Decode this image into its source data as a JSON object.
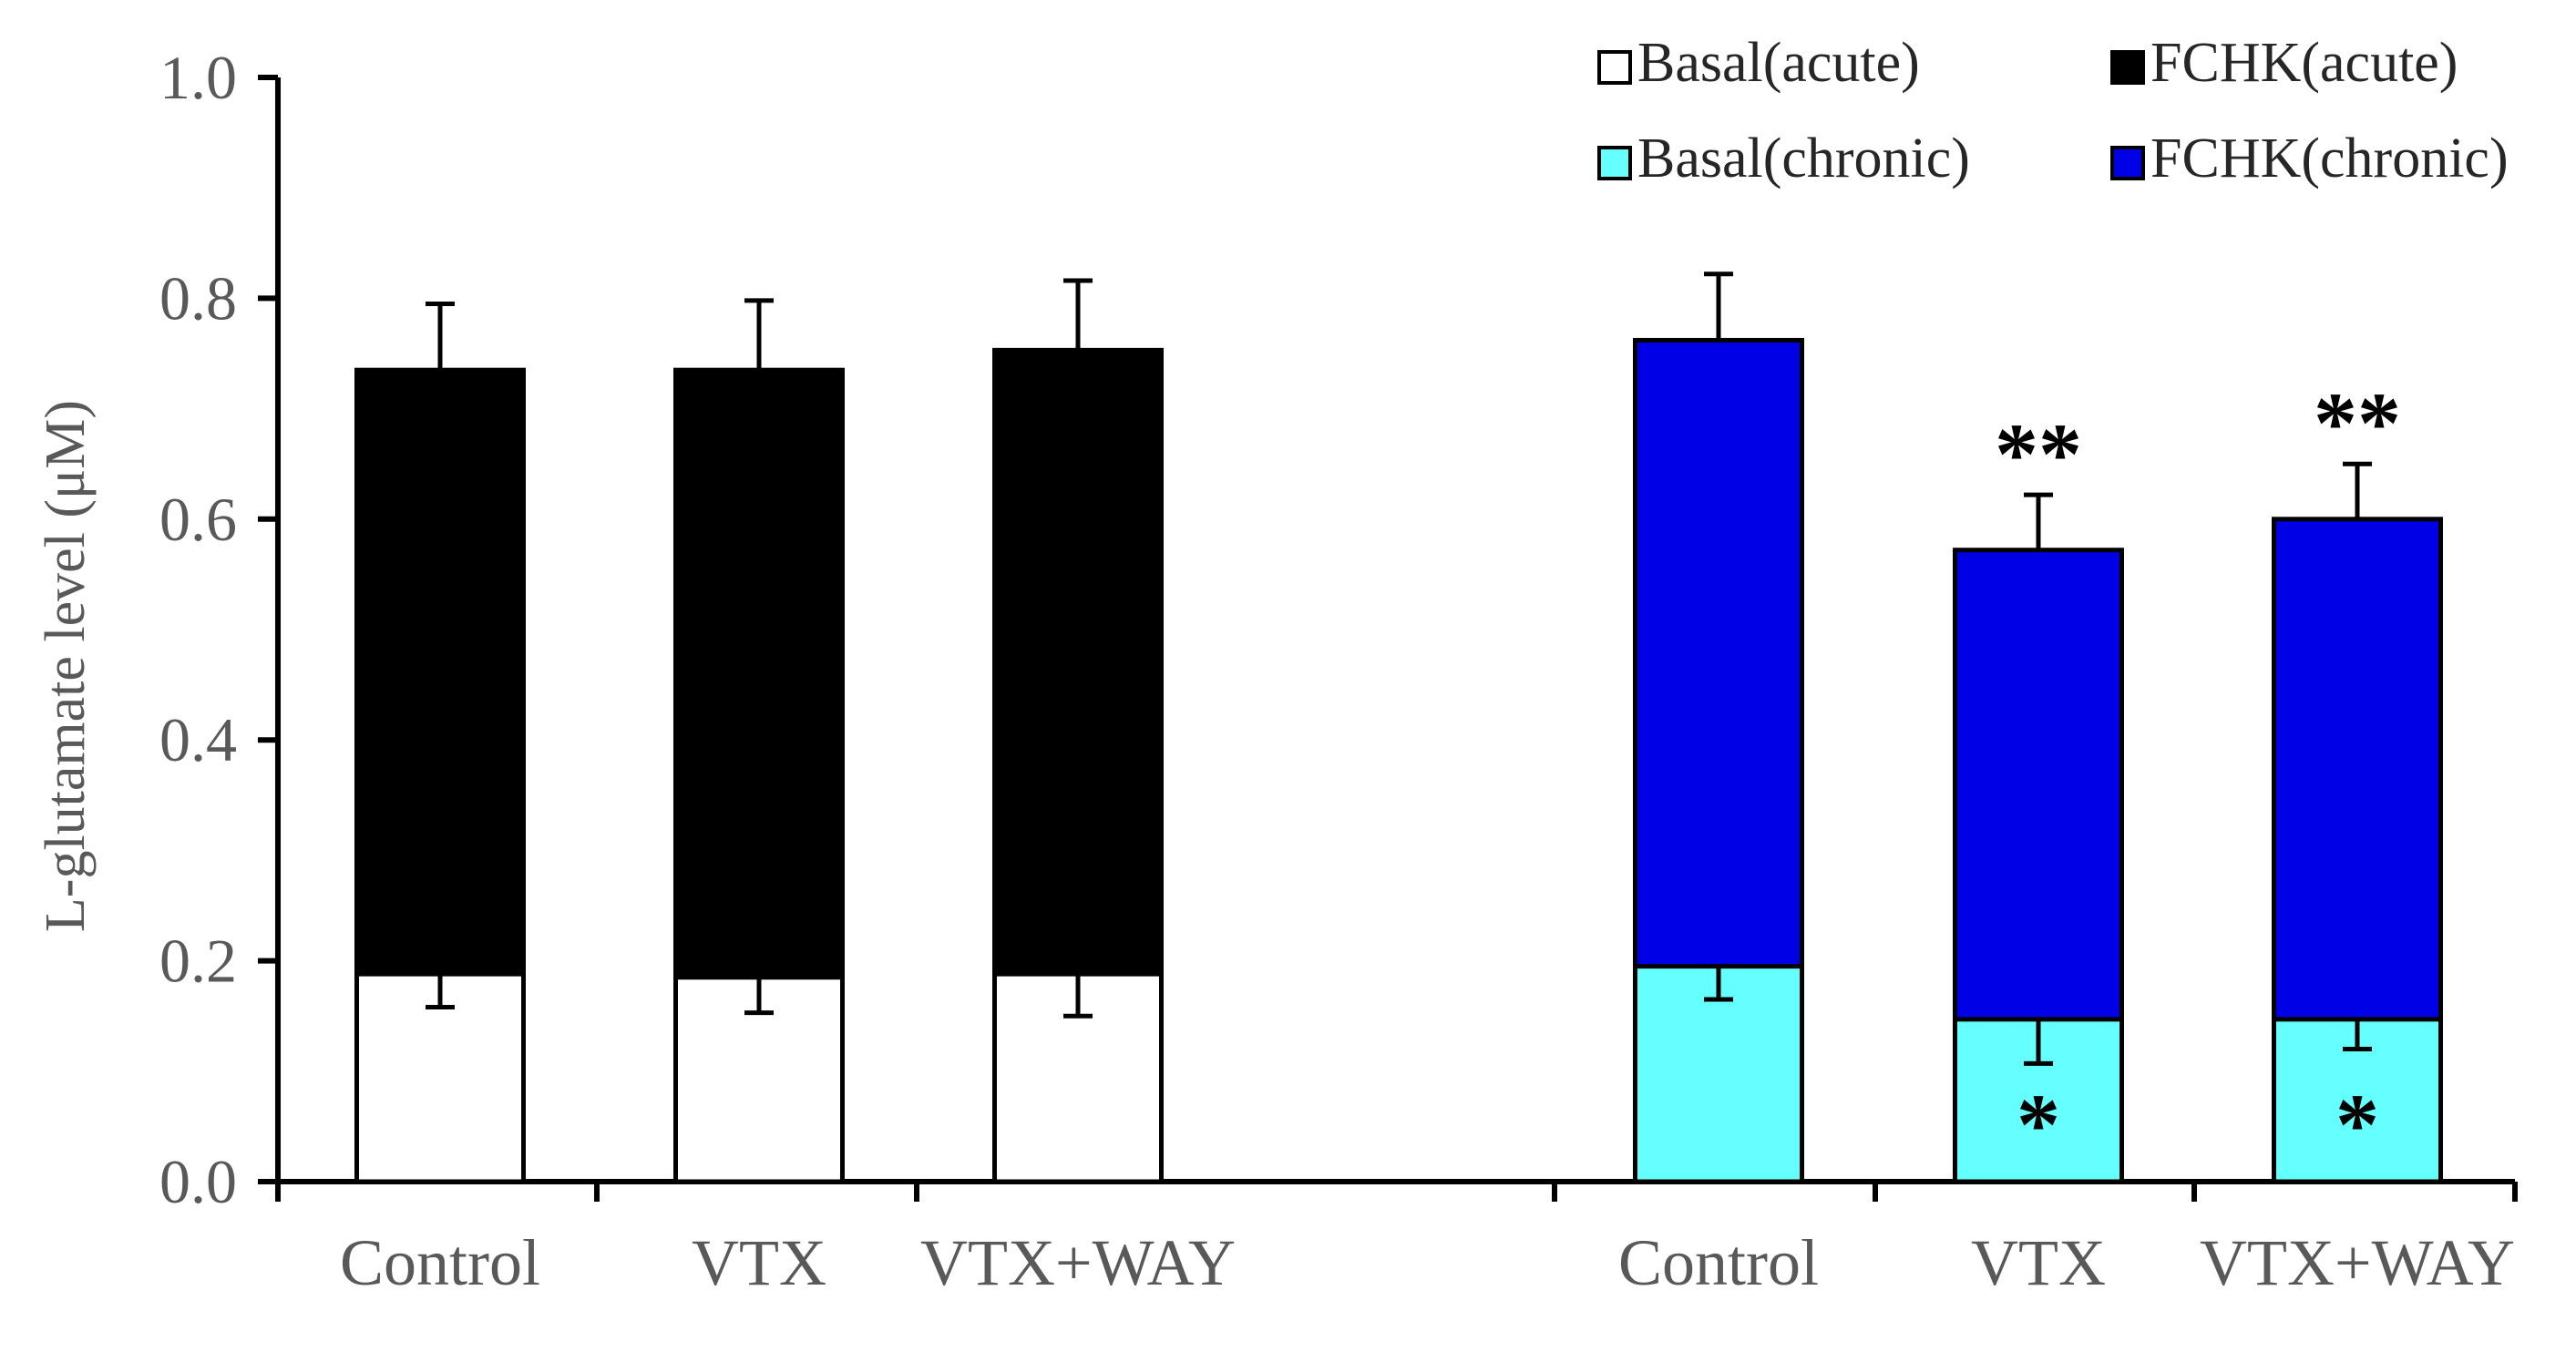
{
  "chart_data": {
    "type": "bar",
    "stacked": "overlay",
    "title": "",
    "xlabel": "",
    "ylabel": "L-glutamate level (μM)",
    "ylim": [
      0,
      1.0
    ],
    "yticks": [
      "0.0",
      "0.2",
      "0.4",
      "0.6",
      "0.8",
      "1.0"
    ],
    "ytick_values": [
      0,
      0.2,
      0.4,
      0.6,
      0.8,
      1.0
    ],
    "groups": [
      {
        "name": "acute",
        "categories": [
          "Control",
          "VTX",
          "VTX+WAY"
        ],
        "series": [
          {
            "name": "Basal(acute)",
            "color": "#ffffff",
            "values": [
              0.188,
              0.185,
              0.188
            ],
            "errors": [
              0.03,
              0.032,
              0.038
            ]
          },
          {
            "name": "FCHK(acute)",
            "color": "#000000",
            "values": [
              0.735,
              0.735,
              0.753
            ],
            "errors": [
              0.06,
              0.063,
              0.063
            ]
          }
        ],
        "basal_marks": [
          "",
          "",
          ""
        ],
        "fchk_marks": [
          "",
          "",
          ""
        ]
      },
      {
        "name": "chronic",
        "categories": [
          "Control",
          "VTX",
          "VTX+WAY"
        ],
        "series": [
          {
            "name": "Basal(chronic)",
            "color": "#66ffff",
            "values": [
              0.195,
              0.147,
              0.147
            ],
            "errors": [
              0.03,
              0.04,
              0.027
            ]
          },
          {
            "name": "FCHK(chronic)",
            "color": "#0000e6",
            "values": [
              0.762,
              0.572,
              0.6
            ],
            "errors": [
              0.06,
              0.05,
              0.05
            ]
          }
        ],
        "basal_marks": [
          "",
          "*",
          "*"
        ],
        "fchk_marks": [
          "",
          "**",
          "**"
        ]
      }
    ],
    "legend": {
      "position": "top-right",
      "entries": [
        {
          "label": "Basal(acute)",
          "color": "#ffffff"
        },
        {
          "label": "FCHK(acute)",
          "color": "#000000"
        },
        {
          "label": "Basal(chronic)",
          "color": "#66ffff"
        },
        {
          "label": "FCHK(chronic)",
          "color": "#0000e6"
        }
      ]
    }
  }
}
